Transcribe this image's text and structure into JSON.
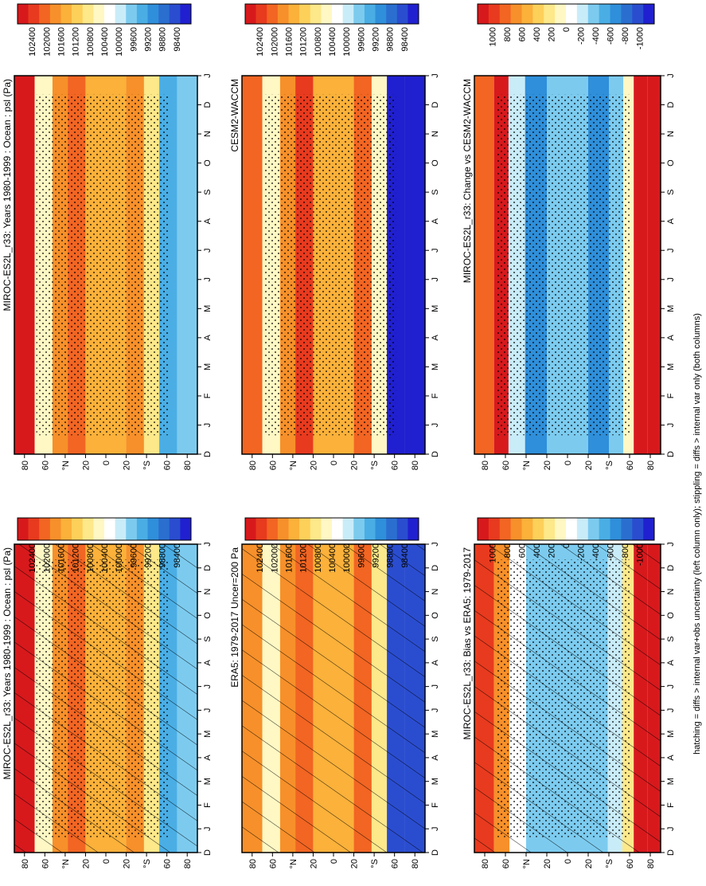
{
  "footer_note": "hatching = diffs > internal var+obs uncertainty (left column only); stippling = diffs > internal var only (both columns)",
  "colors": {
    "abs_scale": [
      "#d7191c",
      "#e83a1e",
      "#f26522",
      "#f7902a",
      "#fbb13a",
      "#fdd05a",
      "#fde88a",
      "#fff8c4",
      "#ffffff",
      "#c9ecf9",
      "#7ccbef",
      "#4aaee5",
      "#2f8fda",
      "#2a6fd0",
      "#2a4dd0",
      "#2020d0"
    ],
    "diff_scale": [
      "#d7191c",
      "#e83a1e",
      "#f26522",
      "#f7902a",
      "#fbb13a",
      "#fdd05a",
      "#fde88a",
      "#fff8c4",
      "#ffffff",
      "#c9ecf9",
      "#7ccbef",
      "#4aaee5",
      "#2f8fda",
      "#2a6fd0",
      "#2a4dd0",
      "#2020d0"
    ]
  },
  "colorbars": {
    "abs": {
      "labels": [
        "102400",
        "102000",
        "101600",
        "101200",
        "100800",
        "100400",
        "100000",
        "99600",
        "99200",
        "98800",
        "98400"
      ]
    },
    "diff": {
      "labels": [
        "1000",
        "800",
        "600",
        "400",
        "200",
        "0",
        "-200",
        "-400",
        "-600",
        "-800",
        "-1000"
      ]
    }
  },
  "axes": {
    "month_ticks": [
      "D",
      "J",
      "F",
      "M",
      "A",
      "M",
      "J",
      "J",
      "A",
      "S",
      "O",
      "N",
      "D",
      "J"
    ],
    "lat_ticks": [
      "80",
      "60",
      "°N",
      "20",
      "0",
      "20",
      "°S",
      "60",
      "80"
    ]
  },
  "chart_data": [
    {
      "type": "heatmap",
      "title": "MIROC-ES2L_r33: Years 1980-1999 : Ocean : psl (Pa)",
      "x": "month",
      "y": "latitude",
      "ylim": [
        -90,
        90
      ],
      "colorbar": "abs",
      "overlay": "hatching + stippling",
      "profile": [
        {
          "lat": 80,
          "value": 102200
        },
        {
          "lat": 60,
          "value": 100600
        },
        {
          "lat": 45,
          "value": 101500
        },
        {
          "lat": 30,
          "value": 101700
        },
        {
          "lat": 10,
          "value": 101200
        },
        {
          "lat": -10,
          "value": 101200
        },
        {
          "lat": -30,
          "value": 101600
        },
        {
          "lat": -45,
          "value": 100800
        },
        {
          "lat": -60,
          "value": 99600
        },
        {
          "lat": -80,
          "value": 99800
        }
      ]
    },
    {
      "type": "heatmap",
      "title": "MIROC-ES2L_r33: Years 1980-1999 : Ocean : psl (Pa)",
      "x": "month",
      "y": "latitude",
      "ylim": [
        -90,
        90
      ],
      "colorbar": "abs",
      "overlay": "stippling",
      "profile": [
        {
          "lat": 80,
          "value": 102200
        },
        {
          "lat": 60,
          "value": 100600
        },
        {
          "lat": 45,
          "value": 101500
        },
        {
          "lat": 30,
          "value": 101700
        },
        {
          "lat": 10,
          "value": 101200
        },
        {
          "lat": -10,
          "value": 101200
        },
        {
          "lat": -30,
          "value": 101600
        },
        {
          "lat": -45,
          "value": 100800
        },
        {
          "lat": -60,
          "value": 99600
        },
        {
          "lat": -80,
          "value": 99800
        }
      ]
    },
    {
      "type": "heatmap",
      "title": "ERA5: 1979-2017 Uncer=200 Pa",
      "x": "month",
      "y": "latitude",
      "ylim": [
        -90,
        90
      ],
      "colorbar": "abs",
      "overlay": "hatching",
      "profile": [
        {
          "lat": 80,
          "value": 101600
        },
        {
          "lat": 60,
          "value": 100600
        },
        {
          "lat": 45,
          "value": 101600
        },
        {
          "lat": 30,
          "value": 101900
        },
        {
          "lat": 10,
          "value": 101200
        },
        {
          "lat": -10,
          "value": 101200
        },
        {
          "lat": -30,
          "value": 101700
        },
        {
          "lat": -45,
          "value": 100800
        },
        {
          "lat": -60,
          "value": 98800
        },
        {
          "lat": -80,
          "value": 98800
        }
      ]
    },
    {
      "type": "heatmap",
      "title": "CESM2-WACCM",
      "x": "month",
      "y": "latitude",
      "ylim": [
        -90,
        90
      ],
      "colorbar": "abs",
      "overlay": "stippling",
      "profile": [
        {
          "lat": 80,
          "value": 101900
        },
        {
          "lat": 60,
          "value": 100600
        },
        {
          "lat": 45,
          "value": 101600
        },
        {
          "lat": 30,
          "value": 102000
        },
        {
          "lat": 10,
          "value": 101300
        },
        {
          "lat": -10,
          "value": 101300
        },
        {
          "lat": -30,
          "value": 101900
        },
        {
          "lat": -45,
          "value": 100600
        },
        {
          "lat": -60,
          "value": 98600
        },
        {
          "lat": -80,
          "value": 98600
        }
      ]
    },
    {
      "type": "heatmap",
      "title": "MIROC-ES2L_r33: Bias vs ERA5: 1979-2017",
      "x": "month",
      "y": "latitude",
      "ylim": [
        -90,
        90
      ],
      "colorbar": "diff",
      "overlay": "hatching + stippling",
      "profile": [
        {
          "lat": 80,
          "value": 800
        },
        {
          "lat": 62,
          "value": 600
        },
        {
          "lat": 50,
          "value": -100
        },
        {
          "lat": 30,
          "value": -300
        },
        {
          "lat": 10,
          "value": -300
        },
        {
          "lat": -10,
          "value": -300
        },
        {
          "lat": -30,
          "value": -300
        },
        {
          "lat": -48,
          "value": -200
        },
        {
          "lat": -58,
          "value": 200
        },
        {
          "lat": -70,
          "value": 1000
        },
        {
          "lat": -85,
          "value": 1000
        }
      ]
    },
    {
      "type": "heatmap",
      "title": "MIROC-ES2L_r33: Change vs CESM2-WACCM",
      "x": "month",
      "y": "latitude",
      "ylim": [
        -90,
        90
      ],
      "colorbar": "diff",
      "overlay": "stippling",
      "profile": [
        {
          "lat": 80,
          "value": 700
        },
        {
          "lat": 62,
          "value": 900
        },
        {
          "lat": 52,
          "value": -200
        },
        {
          "lat": 30,
          "value": -500
        },
        {
          "lat": 10,
          "value": -350
        },
        {
          "lat": -10,
          "value": -350
        },
        {
          "lat": -30,
          "value": -500
        },
        {
          "lat": -50,
          "value": -350
        },
        {
          "lat": -58,
          "value": 100
        },
        {
          "lat": -70,
          "value": 1000
        },
        {
          "lat": -85,
          "value": 1000
        }
      ]
    }
  ]
}
